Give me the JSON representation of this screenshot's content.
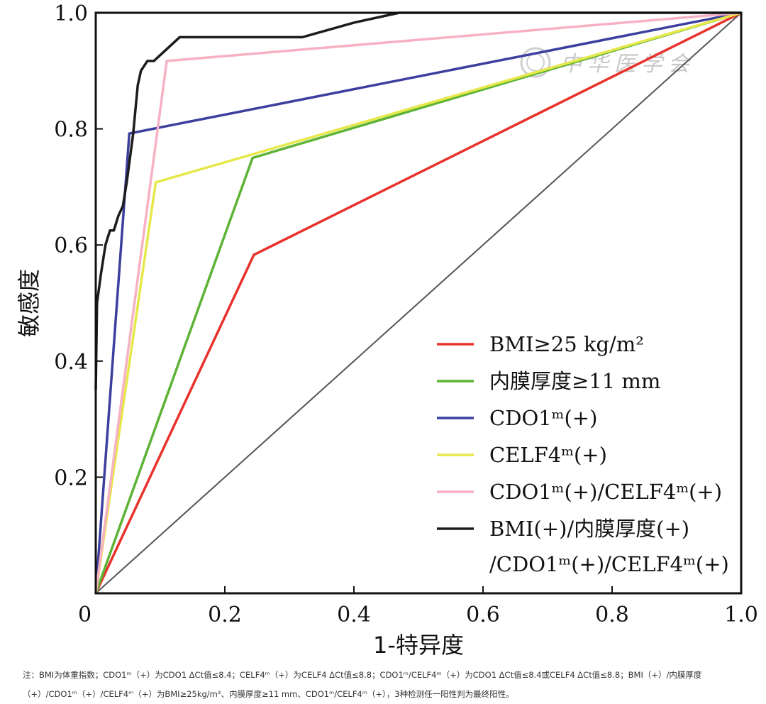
{
  "chart_data": {
    "type": "line",
    "xlabel": "1-特异度",
    "ylabel": "敏感度",
    "xlim": [
      0,
      1
    ],
    "ylim": [
      0,
      1
    ],
    "x_ticks": [
      "0",
      "0.2",
      "0.4",
      "0.6",
      "0.8",
      "1.0"
    ],
    "y_ticks": [
      "0.2",
      "0.4",
      "0.6",
      "0.8",
      "1.0"
    ],
    "grid": false,
    "legend_position": "bottom-right",
    "reference_line": {
      "x": [
        0,
        1
      ],
      "y": [
        0,
        1
      ],
      "color": "#555555"
    },
    "series": [
      {
        "name": "BMI≥25 kg/m²",
        "color": "#e8322d",
        "x": [
          0,
          0.245,
          1
        ],
        "y": [
          0,
          0.583,
          1
        ]
      },
      {
        "name": "内膜厚度≥11 mm",
        "color": "#5db335",
        "x": [
          0,
          0.243,
          1
        ],
        "y": [
          0,
          0.75,
          1
        ]
      },
      {
        "name": "CDO1ᵐ(+)",
        "color": "#3c3f9e",
        "x": [
          0,
          0.052,
          1
        ],
        "y": [
          0,
          0.792,
          1
        ]
      },
      {
        "name": "CELF4ᵐ(+)",
        "color": "#e6e84a",
        "x": [
          0,
          0.093,
          1
        ],
        "y": [
          0,
          0.708,
          1
        ]
      },
      {
        "name": "CDO1ᵐ(+)/CELF4ᵐ(+)",
        "color": "#f6b1c3",
        "x": [
          0,
          0.11,
          1
        ],
        "y": [
          0,
          0.917,
          1
        ]
      },
      {
        "name": "BMI(+)/内膜厚度(+)/CDO1ᵐ(+)/CELF4ᵐ(+)",
        "color": "#1c1c1c",
        "x": [
          0,
          0.002,
          0.008,
          0.015,
          0.022,
          0.028,
          0.035,
          0.042,
          0.048,
          0.058,
          0.065,
          0.07,
          0.08,
          0.09,
          0.13,
          0.32,
          0.4,
          0.47,
          0.48,
          1
        ],
        "y": [
          0.35,
          0.5,
          0.55,
          0.6,
          0.625,
          0.625,
          0.65,
          0.667,
          0.708,
          0.792,
          0.875,
          0.9,
          0.917,
          0.917,
          0.958,
          0.958,
          0.983,
          1.0,
          1.0,
          1.0
        ]
      }
    ]
  },
  "watermark": "中华医学会",
  "notes": {
    "line1": "注：BMI为体重指数；CDO1ᵐ（+）为CDO1 ΔCt值≤8.4；CELF4ᵐ（+）为CELF4 ΔCt值≤8.8；CDO1ᵐ/CELF4ᵐ（+）为CDO1 ΔCt值≤8.4或CELF4 ΔCt值≤8.8；BMI（+）/内膜厚度",
    "line2": "（+）/CDO1ᵐ（+）/CELF4ᵐ（+）为BMI≥25kg/m²、内膜厚度≥11 mm、CDO1ᵐ/CELF4ᵐ（+），3种检测任一阳性判为最终阳性。"
  }
}
